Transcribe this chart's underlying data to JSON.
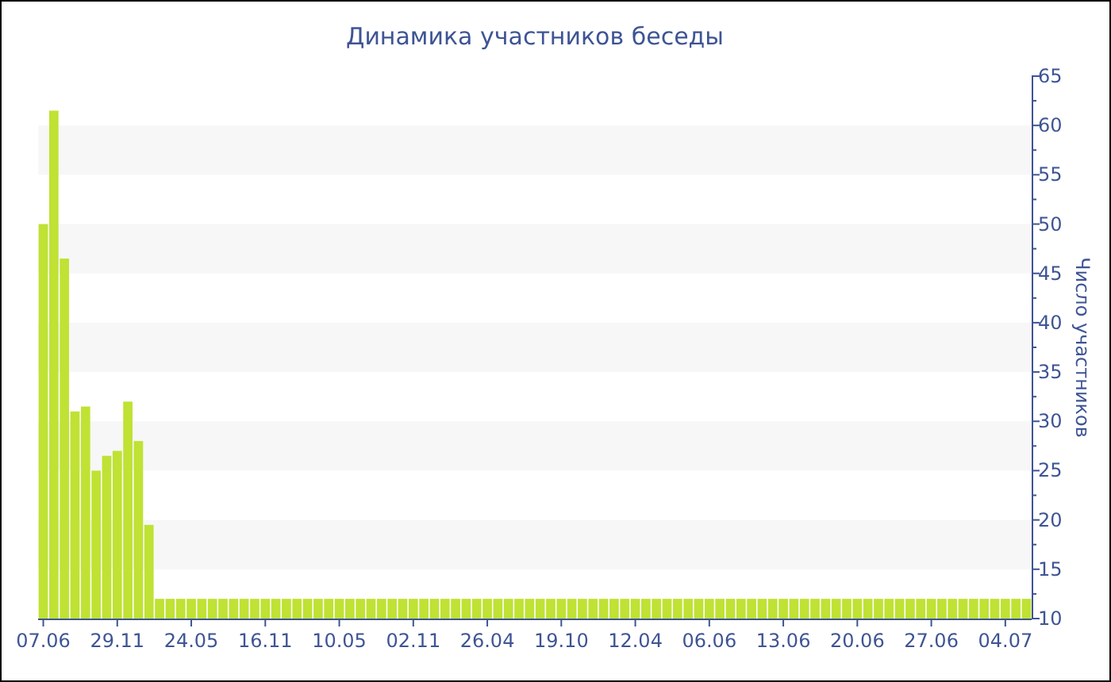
{
  "chart_data": {
    "type": "bar",
    "title": "Динамика участников беседы",
    "ylabel": "Число участников",
    "categories": [
      "07.06",
      null,
      null,
      null,
      null,
      null,
      null,
      "29.11",
      null,
      null,
      null,
      null,
      null,
      null,
      "24.05",
      null,
      null,
      null,
      null,
      null,
      null,
      "16.11",
      null,
      null,
      null,
      null,
      null,
      null,
      "10.05",
      null,
      null,
      null,
      null,
      null,
      null,
      "02.11",
      null,
      null,
      null,
      null,
      null,
      null,
      "26.04",
      null,
      null,
      null,
      null,
      null,
      null,
      "19.10",
      null,
      null,
      null,
      null,
      null,
      null,
      "12.04",
      null,
      null,
      null,
      null,
      null,
      null,
      "06.06",
      null,
      null,
      null,
      null,
      null,
      null,
      "13.06",
      null,
      null,
      null,
      null,
      null,
      null,
      "20.06",
      null,
      null,
      null,
      null,
      null,
      null,
      "27.06",
      null,
      null,
      null,
      null,
      null,
      null,
      "04.07",
      null,
      null
    ],
    "values": [
      50,
      61.5,
      46.5,
      31,
      31.5,
      25,
      26.5,
      27,
      32,
      28,
      19.5,
      12,
      12,
      12,
      12,
      12,
      12,
      12,
      12,
      12,
      12,
      12,
      12,
      12,
      12,
      12,
      12,
      12,
      12,
      12,
      12,
      12,
      12,
      12,
      12,
      12,
      12,
      12,
      12,
      12,
      12,
      12,
      12,
      12,
      12,
      12,
      12,
      12,
      12,
      12,
      12,
      12,
      12,
      12,
      12,
      12,
      12,
      12,
      12,
      12,
      12,
      12,
      12,
      12,
      12,
      12,
      12,
      12,
      12,
      12,
      12,
      12,
      12,
      12,
      12,
      12,
      12,
      12,
      12,
      12,
      12,
      12,
      12,
      12,
      12,
      12,
      12,
      12,
      12,
      12,
      12,
      12,
      12,
      12
    ],
    "color": "#bfe234",
    "ylim": [
      10,
      65
    ],
    "yticks": [
      10,
      15,
      20,
      25,
      30,
      35,
      40,
      45,
      50,
      55,
      60,
      65
    ],
    "bands": [
      {
        "axis": "y",
        "from": 15,
        "to": 20,
        "color": "#f7f7f7"
      },
      {
        "axis": "y",
        "from": 25,
        "to": 30,
        "color": "#f7f7f7"
      },
      {
        "axis": "y",
        "from": 35,
        "to": 40,
        "color": "#f7f7f7"
      },
      {
        "axis": "y",
        "from": 45,
        "to": 50,
        "color": "#f7f7f7"
      },
      {
        "axis": "y",
        "from": 55,
        "to": 60,
        "color": "#f7f7f7"
      }
    ]
  }
}
